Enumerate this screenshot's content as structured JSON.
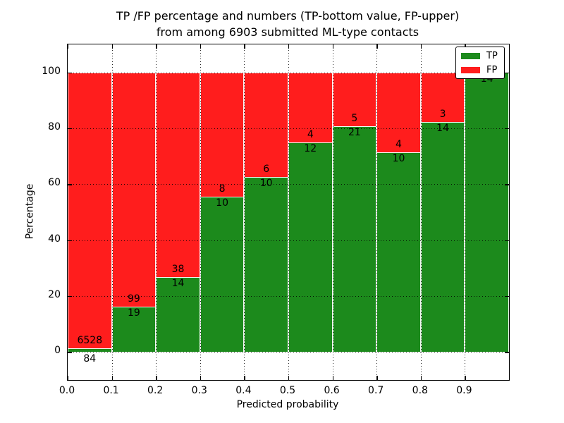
{
  "figure": {
    "title_line1": "TP /FP percentage and numbers (TP-bottom value, FP-upper)",
    "title_line2": "from among 6903 submitted ML-type contacts"
  },
  "axes": {
    "xlabel": "Predicted probability",
    "ylabel": "Percentage",
    "yticks": [
      0,
      20,
      40,
      60,
      80,
      100
    ],
    "ytick_labels": [
      "0",
      "20",
      "40",
      "60",
      "80",
      "100"
    ],
    "xtick_labels": [
      "0.0",
      "0.1",
      "0.2",
      "0.3",
      "0.4",
      "0.5",
      "0.6",
      "0.7",
      "0.8",
      "0.9"
    ]
  },
  "legend": {
    "entries": [
      {
        "label": "TP",
        "color": "#1c8a1c"
      },
      {
        "label": "FP",
        "color": "#ff1d1d"
      }
    ]
  },
  "chart_data": {
    "type": "bar",
    "stacked": true,
    "title": "TP /FP percentage and numbers (TP-bottom value, FP-upper) from among 6903 submitted ML-type contacts",
    "xlabel": "Predicted probability",
    "ylabel": "Percentage",
    "xlim": [
      0.0,
      1.0
    ],
    "ylim": [
      -10,
      110
    ],
    "grid": true,
    "legend_position": "upper right",
    "total_contacts": 6903,
    "bin_width": 0.1,
    "categories": [
      "0.0",
      "0.1",
      "0.2",
      "0.3",
      "0.4",
      "0.5",
      "0.6",
      "0.7",
      "0.8",
      "0.9"
    ],
    "series": [
      {
        "name": "TP",
        "color": "#1c8a1c",
        "counts": [
          84,
          19,
          14,
          10,
          10,
          12,
          21,
          10,
          14,
          14
        ],
        "labels": [
          "84",
          "19",
          "14",
          "10",
          "10",
          "12",
          "21",
          "10",
          "14",
          "14"
        ]
      },
      {
        "name": "FP",
        "color": "#ff1d1d",
        "counts": [
          6528,
          99,
          38,
          8,
          6,
          4,
          5,
          4,
          3,
          0
        ],
        "labels": [
          "6528",
          "99",
          "38",
          "8",
          "6",
          "4",
          "5",
          "4",
          "3",
          ""
        ]
      }
    ],
    "tp_percent": [
      1.3,
      16.1,
      26.9,
      55.6,
      62.5,
      75.0,
      80.8,
      71.4,
      82.4,
      100.0
    ]
  }
}
